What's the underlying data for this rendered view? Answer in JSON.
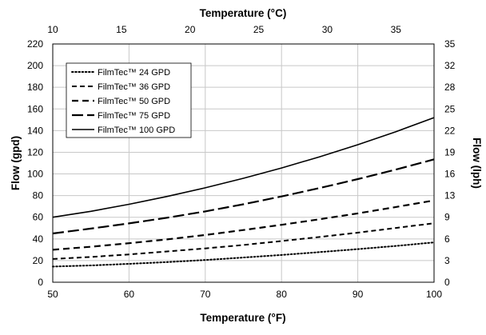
{
  "chart_data": {
    "type": "line",
    "xlabel": "Temperature (°F)",
    "x2label": "Temperature (°C)",
    "ylabel": "Flow (gpd)",
    "y2label": "Flow (lph)",
    "xlim": [
      50,
      100
    ],
    "x2lim": [
      10,
      37.78
    ],
    "ylim": [
      0,
      220
    ],
    "y2lim": [
      0,
      35
    ],
    "x_ticks": [
      50,
      60,
      70,
      80,
      90,
      100
    ],
    "x2_ticks": [
      10,
      15,
      20,
      25,
      30,
      35
    ],
    "y_ticks": [
      0,
      20,
      40,
      60,
      80,
      100,
      120,
      140,
      160,
      180,
      200,
      220
    ],
    "y2_ticks": [
      {
        "label": "0",
        "y_gpd": 0
      },
      {
        "label": "3",
        "y_gpd": 20
      },
      {
        "label": "6",
        "y_gpd": 40
      },
      {
        "label": "9",
        "y_gpd": 60
      },
      {
        "label": "13",
        "y_gpd": 80
      },
      {
        "label": "16",
        "y_gpd": 100
      },
      {
        "label": "19",
        "y_gpd": 120
      },
      {
        "label": "22",
        "y_gpd": 140
      },
      {
        "label": "25",
        "y_gpd": 160
      },
      {
        "label": "28",
        "y_gpd": 180
      },
      {
        "label": "32",
        "y_gpd": 200
      },
      {
        "label": "35",
        "y_gpd": 220
      }
    ],
    "grid": true,
    "legend_position": "top-left",
    "series": [
      {
        "name": "FilmTec™ 24 GPD",
        "style": "dotted",
        "x": [
          50,
          55,
          60,
          65,
          70,
          75,
          80,
          85,
          90,
          95,
          100
        ],
        "y": [
          14.5,
          15.5,
          17,
          18.6,
          20.5,
          22.8,
          25.2,
          27.8,
          30.6,
          33.5,
          36.8
        ]
      },
      {
        "name": "FilmTec™ 36 GPD",
        "style": "short-dash",
        "x": [
          50,
          55,
          60,
          65,
          70,
          75,
          80,
          85,
          90,
          95,
          100
        ],
        "y": [
          21.5,
          23.3,
          25.7,
          28.4,
          31.2,
          34.4,
          38,
          41.8,
          45.8,
          50.1,
          54.5
        ]
      },
      {
        "name": "FilmTec™ 50 GPD",
        "style": "medium-dash",
        "x": [
          50,
          55,
          60,
          65,
          70,
          75,
          80,
          85,
          90,
          95,
          100
        ],
        "y": [
          30,
          32.8,
          36,
          39.6,
          43.6,
          48.2,
          53,
          58.2,
          63.6,
          69.5,
          75.5
        ]
      },
      {
        "name": "FilmTec™ 75 GPD",
        "style": "long-dash",
        "x": [
          50,
          55,
          60,
          65,
          70,
          75,
          80,
          85,
          90,
          95,
          100
        ],
        "y": [
          45,
          49.5,
          54.3,
          59.6,
          65.4,
          72,
          79.2,
          87,
          95.2,
          104,
          113.5
        ]
      },
      {
        "name": "FilmTec™ 100 GPD",
        "style": "solid",
        "x": [
          50,
          55,
          60,
          65,
          70,
          75,
          80,
          85,
          90,
          95,
          100
        ],
        "y": [
          60,
          65.5,
          72,
          79.2,
          87.2,
          96,
          105.5,
          115.8,
          127,
          139,
          152
        ]
      }
    ]
  }
}
